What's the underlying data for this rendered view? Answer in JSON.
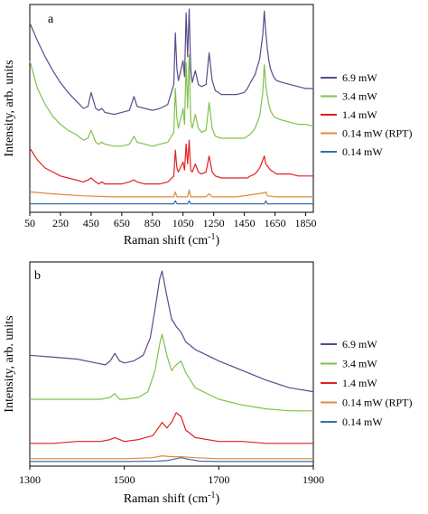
{
  "chart_data": [
    {
      "type": "line",
      "panel_label": "a",
      "xlabel_main": "Raman shift (cm",
      "xlabel_sup": "-1",
      "xlabel_end": ")",
      "ylabel": "Intensity, arb. units",
      "xlim": [
        50,
        1900
      ],
      "xticks": [
        50,
        250,
        450,
        650,
        850,
        1050,
        1250,
        1450,
        1650,
        1850
      ],
      "xtick_labels": [
        "50",
        "250",
        "450",
        "650",
        "850",
        "1050",
        "1250",
        "1450",
        "1650",
        "1850"
      ],
      "ylim": [
        0,
        100
      ],
      "legend_position": "right",
      "series": [
        {
          "name": "6.9 mW",
          "color": "#5b4a8c",
          "x": [
            50,
            100,
            150,
            200,
            250,
            300,
            350,
            400,
            430,
            450,
            480,
            500,
            520,
            540,
            600,
            650,
            700,
            730,
            750,
            800,
            850,
            900,
            950,
            990,
            1000,
            1010,
            1020,
            1050,
            1060,
            1070,
            1080,
            1090,
            1100,
            1110,
            1130,
            1150,
            1170,
            1200,
            1220,
            1240,
            1260,
            1300,
            1350,
            1400,
            1450,
            1470,
            1490,
            1520,
            1550,
            1570,
            1580,
            1590,
            1600,
            1610,
            1620,
            1640,
            1660,
            1700,
            1750,
            1800,
            1850,
            1900
          ],
          "y": [
            93,
            84,
            76,
            69,
            63,
            58,
            54,
            50,
            51,
            58,
            50,
            49,
            50,
            48,
            47,
            48,
            49,
            56,
            51,
            50,
            49,
            50,
            52,
            62,
            88,
            70,
            64,
            74,
            66,
            98,
            76,
            100,
            70,
            63,
            69,
            62,
            61,
            62,
            78,
            64,
            59,
            57,
            57,
            57,
            58,
            60,
            63,
            67,
            75,
            87,
            99,
            88,
            80,
            74,
            70,
            66,
            64,
            63,
            62,
            61,
            60,
            60
          ]
        },
        {
          "name": "3.4 mW",
          "color": "#7fc24a",
          "x": [
            50,
            100,
            150,
            200,
            250,
            300,
            350,
            400,
            430,
            450,
            480,
            500,
            520,
            540,
            600,
            650,
            700,
            730,
            750,
            800,
            850,
            900,
            950,
            990,
            1000,
            1010,
            1020,
            1050,
            1060,
            1070,
            1080,
            1090,
            1100,
            1110,
            1130,
            1150,
            1170,
            1200,
            1220,
            1240,
            1260,
            1300,
            1350,
            1400,
            1450,
            1470,
            1490,
            1520,
            1550,
            1570,
            1580,
            1590,
            1600,
            1610,
            1620,
            1640,
            1660,
            1700,
            1750,
            1800,
            1850,
            1900
          ],
          "y": [
            74,
            60,
            52,
            46,
            42,
            39,
            37,
            34,
            35,
            39,
            33,
            32,
            33,
            32,
            31,
            31,
            32,
            36,
            33,
            32,
            31,
            32,
            33,
            38,
            60,
            45,
            40,
            50,
            42,
            73,
            50,
            77,
            44,
            40,
            47,
            40,
            38,
            39,
            53,
            40,
            36,
            35,
            35,
            35,
            35,
            36,
            37,
            40,
            46,
            58,
            72,
            62,
            56,
            52,
            49,
            46,
            45,
            44,
            43,
            42,
            42,
            41
          ]
        },
        {
          "name": "1.4 mW",
          "color": "#e02020",
          "x": [
            50,
            100,
            150,
            200,
            250,
            300,
            350,
            400,
            430,
            450,
            480,
            500,
            520,
            540,
            600,
            650,
            700,
            730,
            750,
            800,
            850,
            900,
            950,
            990,
            1000,
            1010,
            1020,
            1050,
            1060,
            1070,
            1080,
            1090,
            1100,
            1110,
            1130,
            1150,
            1170,
            1200,
            1220,
            1240,
            1260,
            1300,
            1350,
            1400,
            1450,
            1470,
            1490,
            1520,
            1550,
            1570,
            1580,
            1590,
            1600,
            1610,
            1620,
            1640,
            1660,
            1700,
            1750,
            1800,
            1850,
            1900
          ],
          "y": [
            30,
            24,
            20,
            18,
            16,
            15,
            14,
            13,
            14,
            15,
            13,
            12,
            13,
            12,
            12,
            12,
            13,
            14,
            13,
            12,
            12,
            12,
            13,
            16,
            29,
            20,
            18,
            23,
            19,
            32,
            22,
            34,
            19,
            18,
            22,
            18,
            17,
            18,
            26,
            18,
            16,
            15,
            15,
            15,
            15,
            15,
            16,
            17,
            20,
            24,
            26,
            22,
            21,
            20,
            19,
            18,
            17,
            17,
            17,
            16,
            16,
            16
          ]
        },
        {
          "name": "0.14 mW (RPT)",
          "color": "#e08a3c",
          "x": [
            50,
            200,
            400,
            600,
            800,
            990,
            1000,
            1010,
            1080,
            1090,
            1100,
            1200,
            1220,
            1240,
            1400,
            1580,
            1590,
            1600,
            1650,
            1750,
            1900
          ],
          "y": [
            8,
            7,
            6,
            5.5,
            5.5,
            5.5,
            8,
            5.5,
            5.5,
            9,
            5.5,
            5.5,
            7,
            5.5,
            5.5,
            7.5,
            8,
            6,
            5.5,
            5.5,
            5.5
          ]
        },
        {
          "name": "0.14 mW",
          "color": "#3a6fa8",
          "x": [
            50,
            300,
            600,
            900,
            990,
            1000,
            1010,
            1080,
            1090,
            1100,
            1580,
            1590,
            1600,
            1900
          ],
          "y": [
            2,
            2,
            2,
            2,
            2,
            3.5,
            2,
            2,
            3.5,
            2,
            2,
            3.5,
            2,
            2
          ]
        }
      ]
    },
    {
      "type": "line",
      "panel_label": "b",
      "xlabel_main": "Raman shift (cm",
      "xlabel_sup": "-1",
      "xlabel_end": ")",
      "ylabel": "Intensity, arb. units",
      "xlim": [
        1300,
        1900
      ],
      "xticks": [
        1300,
        1500,
        1700,
        1900
      ],
      "xtick_labels": [
        "1300",
        "1500",
        "1700",
        "1900"
      ],
      "ylim": [
        0,
        100
      ],
      "legend_position": "right",
      "series": [
        {
          "name": "6.9 mW",
          "color": "#5b4a8c",
          "x": [
            1300,
            1350,
            1400,
            1440,
            1460,
            1470,
            1480,
            1490,
            1500,
            1520,
            1540,
            1555,
            1565,
            1575,
            1580,
            1590,
            1600,
            1610,
            1620,
            1630,
            1650,
            1700,
            1750,
            1800,
            1850,
            1900
          ],
          "y": [
            56,
            55,
            54,
            52,
            51,
            53,
            57,
            53,
            52,
            53,
            56,
            65,
            80,
            96,
            100,
            87,
            75,
            71,
            68,
            63,
            59,
            53,
            48,
            43,
            39,
            37
          ]
        },
        {
          "name": "3.4 mW",
          "color": "#7fc24a",
          "x": [
            1300,
            1350,
            1400,
            1450,
            1470,
            1480,
            1490,
            1500,
            1530,
            1550,
            1565,
            1575,
            1580,
            1590,
            1600,
            1610,
            1620,
            1630,
            1650,
            1700,
            1750,
            1800,
            1850,
            1900
          ],
          "y": [
            33,
            33,
            33,
            33,
            34,
            36,
            33,
            33,
            34,
            37,
            48,
            62,
            67,
            56,
            48,
            51,
            53,
            47,
            39,
            33,
            30,
            28,
            27,
            27
          ]
        },
        {
          "name": "1.4 mW",
          "color": "#e02020",
          "x": [
            1300,
            1350,
            1400,
            1450,
            1470,
            1480,
            1490,
            1500,
            1530,
            1560,
            1575,
            1580,
            1590,
            1600,
            1610,
            1620,
            1630,
            1650,
            1700,
            1750,
            1800,
            1850,
            1900
          ],
          "y": [
            10,
            10,
            11,
            11,
            12,
            13,
            12,
            11,
            12,
            14,
            19,
            21,
            18,
            21,
            26,
            24,
            17,
            13,
            11,
            11,
            10,
            10,
            10
          ]
        },
        {
          "name": "0.14 mW (RPT)",
          "color": "#e08a3c",
          "x": [
            1300,
            1500,
            1560,
            1580,
            1600,
            1620,
            1650,
            1700,
            1900
          ],
          "y": [
            2,
            2,
            2.5,
            3.5,
            3,
            3,
            2.5,
            2,
            2
          ]
        },
        {
          "name": "0.14 mW",
          "color": "#3a6fa8",
          "x": [
            1300,
            1500,
            1570,
            1590,
            1610,
            1620,
            1630,
            1660,
            1700,
            1900
          ],
          "y": [
            0.5,
            0.5,
            0.7,
            1,
            2,
            2.5,
            2,
            0.7,
            0.5,
            0.5
          ]
        }
      ]
    }
  ]
}
